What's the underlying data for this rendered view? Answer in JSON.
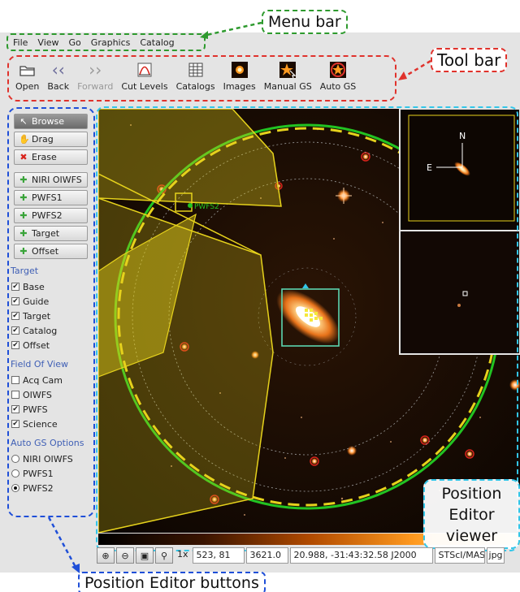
{
  "annotations": {
    "menu_bar": "Menu bar",
    "tool_bar": "Tool bar",
    "position_editor_buttons": "Position Editor buttons",
    "viewer_line1": "Position",
    "viewer_line2": "Editor",
    "viewer_line3": "viewer"
  },
  "menu": [
    "File",
    "View",
    "Go",
    "Graphics",
    "Catalog"
  ],
  "toolbar": [
    {
      "label": "Open",
      "icon": "folder-icon"
    },
    {
      "label": "Back",
      "icon": "back-icon"
    },
    {
      "label": "Forward",
      "icon": "forward-icon",
      "disabled": true
    },
    {
      "label": "Cut Levels",
      "icon": "cut-levels-icon"
    },
    {
      "label": "Catalogs",
      "icon": "catalogs-icon"
    },
    {
      "label": "Images",
      "icon": "images-icon"
    },
    {
      "label": "Manual GS",
      "icon": "manual-gs-icon"
    },
    {
      "label": "Auto GS",
      "icon": "auto-gs-icon"
    }
  ],
  "mode_buttons": [
    {
      "label": "Browse",
      "icon": "cursor-icon",
      "active": true
    },
    {
      "label": "Drag",
      "icon": "hand-icon"
    },
    {
      "label": "Erase",
      "icon": "erase-icon"
    }
  ],
  "add_buttons": [
    "NIRI OIWFS",
    "PWFS1",
    "PWFS2",
    "Target",
    "Offset"
  ],
  "target_section": {
    "title": "Target",
    "items": [
      {
        "label": "Base",
        "checked": true
      },
      {
        "label": "Guide",
        "checked": true
      },
      {
        "label": "Target",
        "checked": true
      },
      {
        "label": "Catalog",
        "checked": true
      },
      {
        "label": "Offset",
        "checked": true
      }
    ]
  },
  "fov_section": {
    "title": "Field Of View",
    "items": [
      {
        "label": "Acq Cam",
        "checked": false
      },
      {
        "label": "OIWFS",
        "checked": false
      },
      {
        "label": "PWFS",
        "checked": true
      },
      {
        "label": "Science",
        "checked": true
      }
    ]
  },
  "auto_gs_section": {
    "title": "Auto GS Options",
    "items": [
      {
        "label": "NIRI OIWFS",
        "selected": false
      },
      {
        "label": "PWFS1",
        "selected": false
      },
      {
        "label": "PWFS2",
        "selected": true
      }
    ]
  },
  "viewer": {
    "guide_star_label": "PWFS2",
    "compass_north": "N",
    "compass_east": "E"
  },
  "statusbar": {
    "zoom": "1x",
    "pixel": "523, 81",
    "value": "3621.0",
    "coords": "20.988, -31:43:32.58 J2000",
    "source": "STScI/MAST",
    "format": "jpg"
  },
  "colors": {
    "menu_callout": "#2e9a2e",
    "toolbar_callout": "#e0322c",
    "buttons_callout": "#1f4fd8",
    "viewer_callout": "#33c6e8",
    "fov_green": "#22c322",
    "fov_yellow": "#e6d21c"
  }
}
